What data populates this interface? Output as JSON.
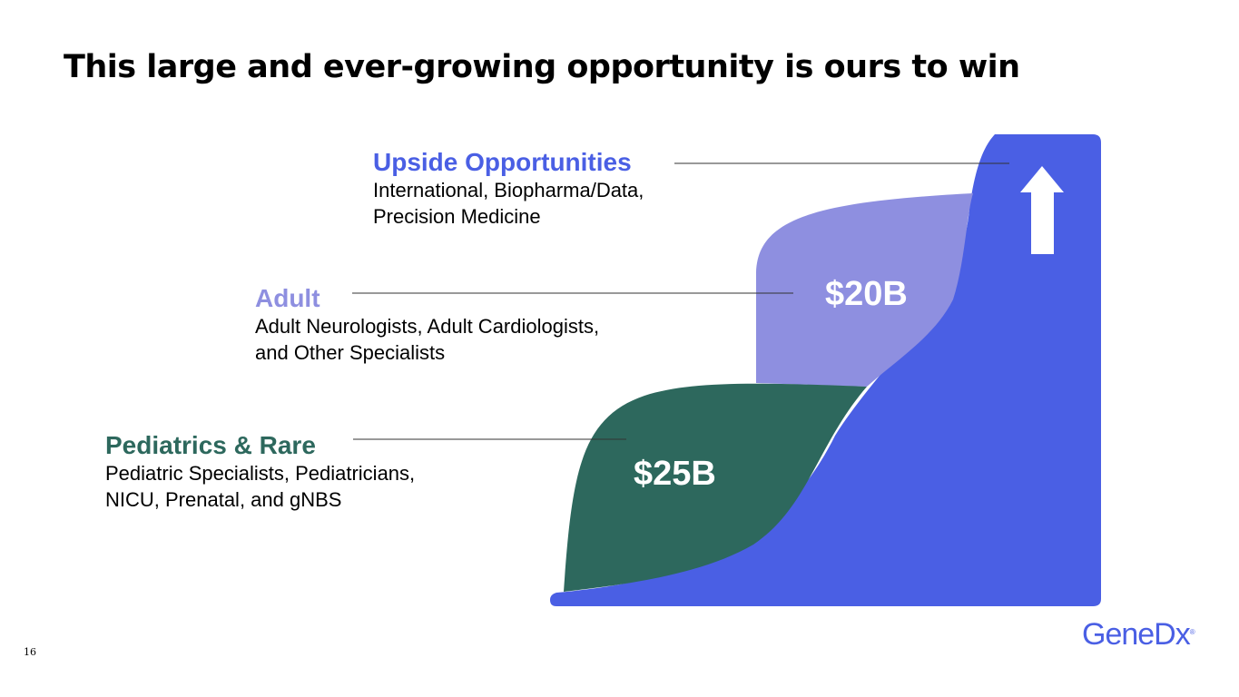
{
  "title": "This large and ever-growing opportunity is ours to win",
  "segments": {
    "upside": {
      "heading": "Upside Opportunities",
      "desc_line1": "International, Biopharma/Data,",
      "desc_line2": "Precision Medicine"
    },
    "adult": {
      "heading": "Adult",
      "desc_line1": "Adult Neurologists, Adult Cardiologists,",
      "desc_line2": "and Other Specialists",
      "value": "$20B"
    },
    "pediatrics": {
      "heading": "Pediatrics & Rare",
      "desc_line1": "Pediatric Specialists, Pediatricians,",
      "desc_line2": "NICU, Prenatal, and gNBS",
      "value": "$25B"
    }
  },
  "colors": {
    "upside": "#4a5fe4",
    "adult": "#8e8fe0",
    "pediatrics": "#2d685d"
  },
  "footer": {
    "page_number": "16",
    "logo_text": "GeneDx",
    "logo_mark": "®"
  }
}
